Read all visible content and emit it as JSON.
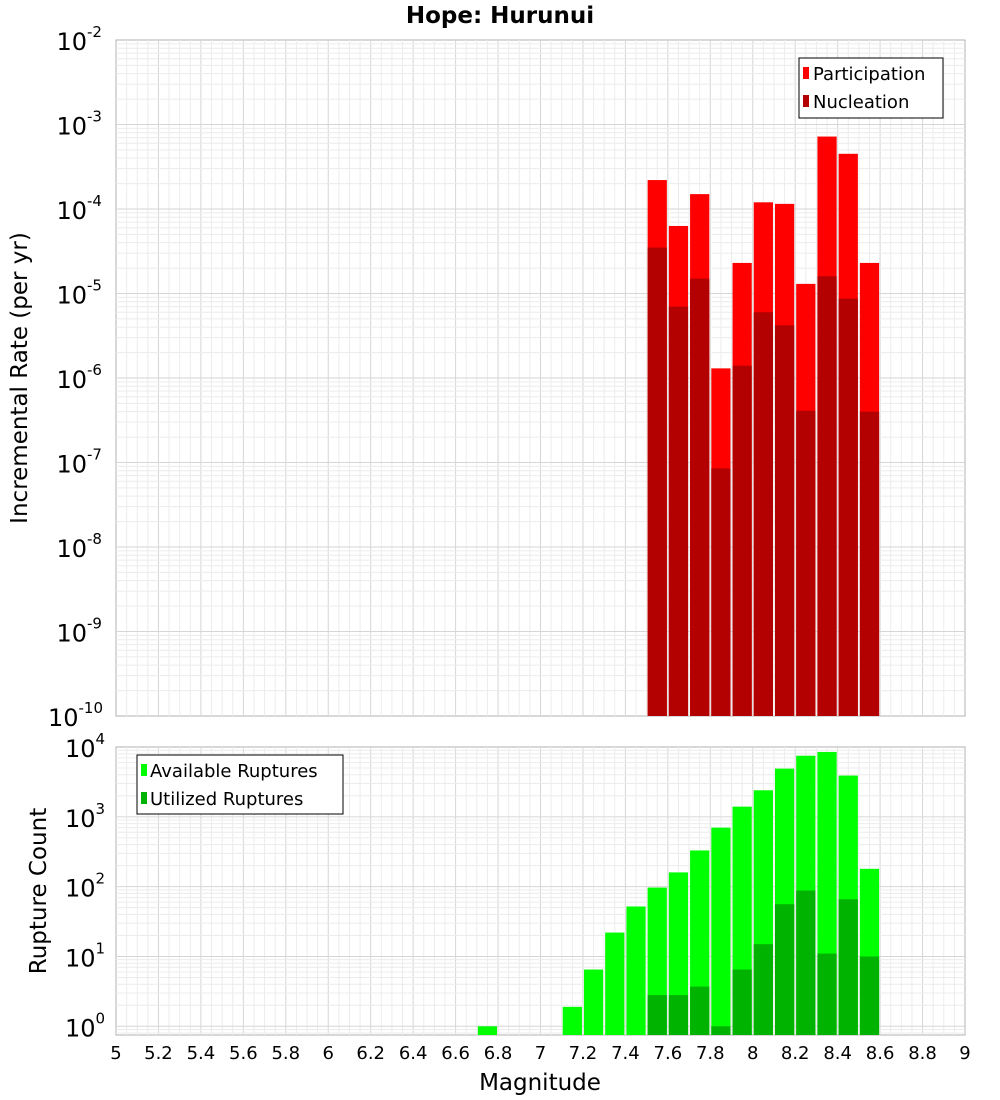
{
  "chart_data": [
    {
      "type": "bar",
      "title": "Hope: Hurunui",
      "xlabel": "",
      "ylabel": "Incremental Rate (per yr)",
      "yscale": "log",
      "xlim": [
        5,
        9
      ],
      "ylim": [
        1e-10,
        0.01
      ],
      "grid": true,
      "legend_position": "top-right",
      "y_ticks": [
        {
          "base": "10",
          "exp": "-2",
          "value": 0.01
        },
        {
          "base": "10",
          "exp": "-3",
          "value": 0.001
        },
        {
          "base": "10",
          "exp": "-4",
          "value": 0.0001
        },
        {
          "base": "10",
          "exp": "-5",
          "value": 1e-05
        },
        {
          "base": "10",
          "exp": "-6",
          "value": 1e-06
        },
        {
          "base": "10",
          "exp": "-7",
          "value": 1e-07
        },
        {
          "base": "10",
          "exp": "-8",
          "value": 1e-08
        },
        {
          "base": "10",
          "exp": "-9",
          "value": 1e-09
        },
        {
          "base": "10",
          "exp": "-10",
          "value": 1e-10
        }
      ],
      "x": [
        7.55,
        7.65,
        7.75,
        7.85,
        7.95,
        8.05,
        8.15,
        8.25,
        8.35,
        8.45,
        8.55
      ],
      "series": [
        {
          "name": "Participation",
          "color": "#ff0000",
          "values": [
            0.00022,
            6.3e-05,
            0.00015,
            1.3e-06,
            2.3e-05,
            0.00012,
            0.000115,
            1.3e-05,
            0.00072,
            0.00045,
            2.3e-05
          ]
        },
        {
          "name": "Nucleation",
          "color": "#b30000",
          "values": [
            3.5e-05,
            7e-06,
            1.5e-05,
            8.5e-08,
            1.4e-06,
            6e-06,
            4.2e-06,
            4.1e-07,
            1.6e-05,
            8.7e-06,
            4e-07
          ]
        }
      ]
    },
    {
      "type": "bar",
      "title": "",
      "xlabel": "Magnitude",
      "ylabel": "Rupture Count",
      "yscale": "log",
      "xlim": [
        5,
        9
      ],
      "ylim": [
        0.75,
        10000
      ],
      "grid": true,
      "legend_position": "top-left",
      "x_ticks": [
        "5",
        "5.2",
        "5.4",
        "5.6",
        "5.8",
        "6",
        "6.2",
        "6.4",
        "6.6",
        "6.8",
        "7",
        "7.2",
        "7.4",
        "7.6",
        "7.8",
        "8",
        "8.2",
        "8.4",
        "8.6",
        "8.8",
        "9"
      ],
      "y_ticks": [
        {
          "base": "10",
          "exp": "4",
          "value": 10000.0
        },
        {
          "base": "10",
          "exp": "3",
          "value": 1000.0
        },
        {
          "base": "10",
          "exp": "2",
          "value": 100.0
        },
        {
          "base": "10",
          "exp": "1",
          "value": 10.0
        },
        {
          "base": "10",
          "exp": "0",
          "value": 1
        }
      ],
      "x": [
        6.75,
        7.15,
        7.25,
        7.35,
        7.45,
        7.55,
        7.65,
        7.75,
        7.85,
        7.95,
        8.05,
        8.15,
        8.25,
        8.35,
        8.45,
        8.55
      ],
      "series": [
        {
          "name": "Available Ruptures",
          "color": "#00ff00",
          "values": [
            1,
            1.9,
            6.5,
            22,
            52,
            97,
            160,
            330,
            700,
            1400,
            2400,
            4900,
            7500,
            8500,
            3900,
            180
          ]
        },
        {
          "name": "Utilized Ruptures",
          "color": "#00b300",
          "values": [
            null,
            null,
            null,
            null,
            null,
            2.8,
            2.8,
            3.7,
            1,
            6.5,
            15,
            56,
            88,
            11,
            66,
            10
          ]
        }
      ]
    }
  ]
}
